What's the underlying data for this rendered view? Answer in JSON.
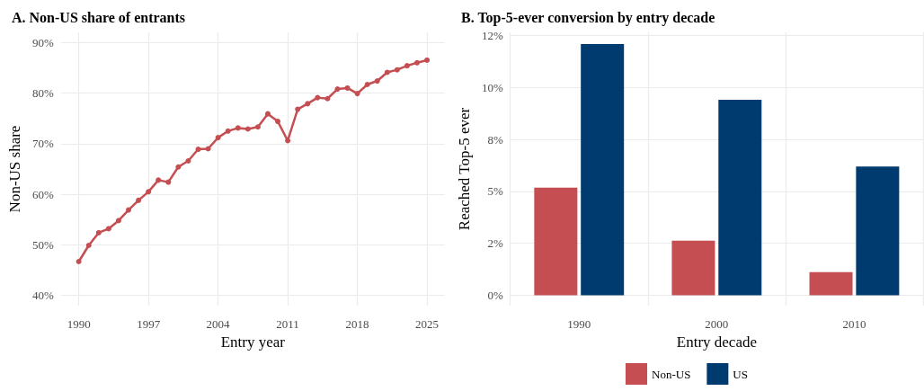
{
  "chart_data": [
    {
      "type": "line",
      "title": "A. Non-US share of entrants",
      "xlabel": "Entry year",
      "ylabel": "Non-US share",
      "x": [
        1990,
        1991,
        1992,
        1993,
        1994,
        1995,
        1996,
        1997,
        1998,
        1999,
        2000,
        2001,
        2002,
        2003,
        2004,
        2005,
        2006,
        2007,
        2008,
        2009,
        2010,
        2011,
        2012,
        2013,
        2014,
        2015,
        2016,
        2017,
        2018,
        2019,
        2020,
        2021,
        2022,
        2023,
        2024,
        2025
      ],
      "series": [
        {
          "color": "#c44e52",
          "values": [
            46.7,
            49.9,
            52.4,
            53.2,
            54.8,
            56.9,
            58.8,
            60.5,
            62.8,
            62.4,
            65.4,
            66.6,
            68.9,
            69.0,
            71.2,
            72.5,
            73.1,
            72.9,
            73.3,
            75.9,
            74.4,
            70.6,
            76.8,
            77.9,
            79.1,
            78.9,
            80.8,
            81.0,
            79.9,
            81.7,
            82.4,
            84.1,
            84.6,
            85.4,
            86.0,
            86.5
          ]
        }
      ],
      "xlim": [
        1988.2,
        2026.8
      ],
      "xticks": [
        1990,
        1997,
        2004,
        2011,
        2018,
        2025
      ],
      "ylim": [
        38,
        92
      ],
      "yticks": [
        {
          "value": 40,
          "label": "40%"
        },
        {
          "value": 50,
          "label": "50%"
        },
        {
          "value": 60,
          "label": "60%"
        },
        {
          "value": 70,
          "label": "70%"
        },
        {
          "value": 80,
          "label": "80%"
        },
        {
          "value": 90,
          "label": "90%"
        }
      ],
      "grid": true,
      "marker": "circle",
      "line_style": "solid",
      "legend": false
    },
    {
      "type": "bar",
      "title": "B. Top-5-ever conversion by entry decade",
      "xlabel": "Entry decade",
      "ylabel": "Reached Top-5 ever",
      "categories": [
        "1990",
        "2000",
        "2010"
      ],
      "series": [
        {
          "name": "Non-US",
          "color": "#c44e52",
          "values": [
            5.18,
            2.63,
            1.11
          ]
        },
        {
          "name": "US",
          "color": "#003b6f",
          "values": [
            12.09,
            9.41,
            6.19
          ]
        }
      ],
      "ylim": [
        -0.5,
        12.65
      ],
      "yticks": [
        {
          "value": 0,
          "label": "0%"
        },
        {
          "value": 2.5,
          "label": "2%"
        },
        {
          "value": 5,
          "label": "5%"
        },
        {
          "value": 7.5,
          "label": "8%"
        },
        {
          "value": 10,
          "label": "10%"
        },
        {
          "value": 12.5,
          "label": "12%"
        }
      ],
      "grid": true,
      "legend": "bottom"
    }
  ]
}
